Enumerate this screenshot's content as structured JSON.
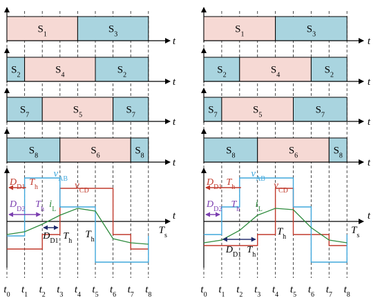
{
  "colors": {
    "pink": "#f6d9d4",
    "blue": "#a9d4df",
    "red": "#c0392b",
    "blueline": "#3fa7dc",
    "green": "#2e8b3d",
    "purple": "#7b3fb0",
    "navy": "#1f2a6b"
  },
  "labels": {
    "t_axis": "t",
    "Ts": "T",
    "Ts_sub": "s",
    "Th": "T",
    "Th_sub": "h",
    "D": "D",
    "D1_sub": "D1",
    "D2_sub": "D2",
    "v": "v",
    "AB_sub": "AB",
    "CD_sub": "CD",
    "i": "i",
    "L_sub": "L"
  },
  "time_ticks": [
    {
      "base": "t",
      "sub": "0"
    },
    {
      "base": "t",
      "sub": "1"
    },
    {
      "base": "t",
      "sub": "2"
    },
    {
      "base": "t",
      "sub": "3"
    },
    {
      "base": "t",
      "sub": "4"
    },
    {
      "base": "t",
      "sub": "5"
    },
    {
      "base": "t",
      "sub": "6"
    },
    {
      "base": "t",
      "sub": "7"
    },
    {
      "base": "t",
      "sub": "8"
    }
  ],
  "panels": [
    {
      "id": "left",
      "switch_rows": [
        [
          {
            "base": "S",
            "sub": "1",
            "color": "pink",
            "from": 0,
            "to": 4
          },
          {
            "base": "S",
            "sub": "3",
            "color": "blue",
            "from": 4,
            "to": 8
          }
        ],
        [
          {
            "base": "S",
            "sub": "2",
            "color": "blue",
            "from": 0,
            "to": 1
          },
          {
            "base": "S",
            "sub": "4",
            "color": "pink",
            "from": 1,
            "to": 5
          },
          {
            "base": "S",
            "sub": "2",
            "color": "blue",
            "from": 5,
            "to": 8
          }
        ],
        [
          {
            "base": "S",
            "sub": "7",
            "color": "blue",
            "from": 0,
            "to": 2
          },
          {
            "base": "S",
            "sub": "5",
            "color": "pink",
            "from": 2,
            "to": 6
          },
          {
            "base": "S",
            "sub": "7",
            "color": "blue",
            "from": 6,
            "to": 8
          }
        ],
        [
          {
            "base": "S",
            "sub": "8",
            "color": "blue",
            "from": 0,
            "to": 3
          },
          {
            "base": "S",
            "sub": "6",
            "color": "pink",
            "from": 3,
            "to": 7
          },
          {
            "base": "S",
            "sub": "8",
            "color": "blue",
            "from": 7,
            "to": 8
          }
        ]
      ]
    },
    {
      "id": "right",
      "switch_rows": [
        [
          {
            "base": "S",
            "sub": "1",
            "color": "pink",
            "from": 0,
            "to": 4
          },
          {
            "base": "S",
            "sub": "3",
            "color": "blue",
            "from": 4,
            "to": 8
          }
        ],
        [
          {
            "base": "S",
            "sub": "2",
            "color": "blue",
            "from": 0,
            "to": 2
          },
          {
            "base": "S",
            "sub": "4",
            "color": "pink",
            "from": 2,
            "to": 6
          },
          {
            "base": "S",
            "sub": "2",
            "color": "blue",
            "from": 6,
            "to": 8
          }
        ],
        [
          {
            "base": "S",
            "sub": "7",
            "color": "blue",
            "from": 0,
            "to": 1
          },
          {
            "base": "S",
            "sub": "5",
            "color": "pink",
            "from": 1,
            "to": 5
          },
          {
            "base": "S",
            "sub": "7",
            "color": "blue",
            "from": 5,
            "to": 8
          }
        ],
        [
          {
            "base": "S",
            "sub": "8",
            "color": "blue",
            "from": 0,
            "to": 3
          },
          {
            "base": "S",
            "sub": "6",
            "color": "pink",
            "from": 3,
            "to": 7
          },
          {
            "base": "S",
            "sub": "8",
            "color": "blue",
            "from": 7,
            "to": 8
          }
        ]
      ]
    }
  ]
}
